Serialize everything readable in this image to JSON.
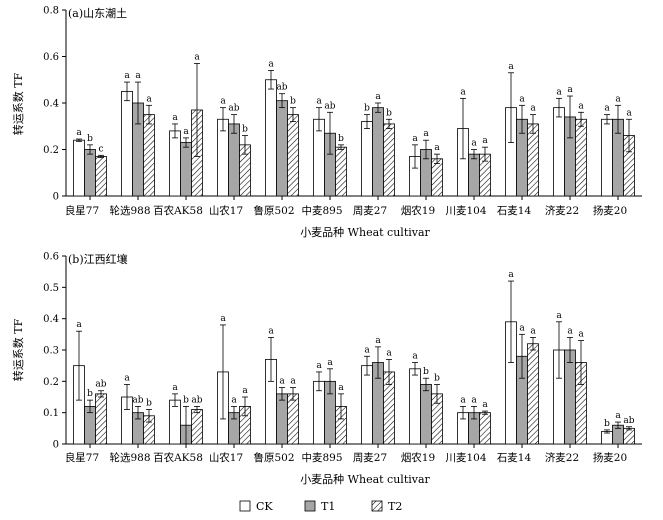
{
  "legend": [
    "CK",
    "T1",
    "T2"
  ],
  "chart_data": [
    {
      "type": "bar",
      "title": "(a)山东潮土",
      "xlabel": "小麦品种 Wheat cultivar",
      "ylabel": "转运系数 TF",
      "ylim": [
        0,
        0.8
      ],
      "yticks": [
        "0",
        "0.2",
        "0.4",
        "0.6",
        "0.8"
      ],
      "categories": [
        "良星77",
        "轮选988",
        "百农AK58",
        "山农17",
        "鲁原502",
        "中麦895",
        "周麦27",
        "烟农19",
        "川麦104",
        "石麦14",
        "济麦22",
        "扬麦20"
      ],
      "series": [
        {
          "name": "CK",
          "values": [
            0.24,
            0.45,
            0.28,
            0.33,
            0.5,
            0.33,
            0.32,
            0.17,
            0.29,
            0.38,
            0.38,
            0.33
          ],
          "errors": [
            0.005,
            0.04,
            0.03,
            0.05,
            0.04,
            0.05,
            0.03,
            0.05,
            0.13,
            0.15,
            0.04,
            0.02
          ],
          "labels": [
            "a",
            "a",
            "a",
            "a",
            "a",
            "a",
            "b",
            "a",
            "a",
            "a",
            "a",
            "a"
          ]
        },
        {
          "name": "T1",
          "values": [
            0.2,
            0.4,
            0.23,
            0.31,
            0.41,
            0.27,
            0.38,
            0.2,
            0.18,
            0.33,
            0.34,
            0.33
          ],
          "errors": [
            0.02,
            0.09,
            0.02,
            0.04,
            0.03,
            0.09,
            0.02,
            0.04,
            0.02,
            0.06,
            0.09,
            0.06
          ],
          "labels": [
            "b",
            "a",
            "a",
            "ab",
            "ab",
            "ab",
            "a",
            "a",
            "a",
            "a",
            "a",
            "a"
          ]
        },
        {
          "name": "T2",
          "values": [
            0.17,
            0.35,
            0.37,
            0.22,
            0.35,
            0.21,
            0.31,
            0.16,
            0.18,
            0.31,
            0.33,
            0.26
          ],
          "errors": [
            0.005,
            0.04,
            0.2,
            0.04,
            0.03,
            0.01,
            0.02,
            0.02,
            0.03,
            0.04,
            0.03,
            0.07
          ],
          "labels": [
            "c",
            "a",
            "a",
            "b",
            "b",
            "b",
            "b",
            "a",
            "a",
            "a",
            "a",
            "a"
          ]
        }
      ]
    },
    {
      "type": "bar",
      "title": "(b)江西红壤",
      "xlabel": "小麦品种 Wheat cultivar",
      "ylabel": "转运系数 TF",
      "ylim": [
        0,
        0.6
      ],
      "yticks": [
        "0",
        "0.1",
        "0.2",
        "0.3",
        "0.4",
        "0.5",
        "0.6"
      ],
      "categories": [
        "良星77",
        "轮选988",
        "百农AK58",
        "山农17",
        "鲁原502",
        "中麦895",
        "周麦27",
        "烟农19",
        "川麦104",
        "石麦14",
        "济麦22",
        "扬麦20"
      ],
      "series": [
        {
          "name": "CK",
          "values": [
            0.25,
            0.15,
            0.14,
            0.23,
            0.27,
            0.2,
            0.25,
            0.24,
            0.1,
            0.39,
            0.3,
            0.04
          ],
          "errors": [
            0.11,
            0.04,
            0.02,
            0.15,
            0.07,
            0.03,
            0.03,
            0.02,
            0.02,
            0.13,
            0.09,
            0.005
          ],
          "labels": [
            "a",
            "a",
            "a",
            "a",
            "a",
            "a",
            "a",
            "a",
            "a",
            "a",
            "a",
            "b"
          ]
        },
        {
          "name": "T1",
          "values": [
            0.12,
            0.1,
            0.06,
            0.1,
            0.16,
            0.2,
            0.26,
            0.19,
            0.1,
            0.28,
            0.3,
            0.06
          ],
          "errors": [
            0.02,
            0.02,
            0.06,
            0.02,
            0.02,
            0.04,
            0.05,
            0.02,
            0.02,
            0.07,
            0.04,
            0.01
          ],
          "labels": [
            "b",
            "ab",
            "b",
            "a",
            "a",
            "a",
            "a",
            "b",
            "a",
            "a",
            "a",
            "a"
          ]
        },
        {
          "name": "T2",
          "values": [
            0.16,
            0.09,
            0.11,
            0.12,
            0.16,
            0.12,
            0.23,
            0.16,
            0.1,
            0.32,
            0.26,
            0.05
          ],
          "errors": [
            0.01,
            0.02,
            0.01,
            0.03,
            0.02,
            0.04,
            0.04,
            0.03,
            0.005,
            0.02,
            0.07,
            0.005
          ],
          "labels": [
            "ab",
            "b",
            "ab",
            "a",
            "a",
            "a",
            "a",
            "b",
            "a",
            "a",
            "a",
            "ab"
          ]
        }
      ]
    }
  ]
}
